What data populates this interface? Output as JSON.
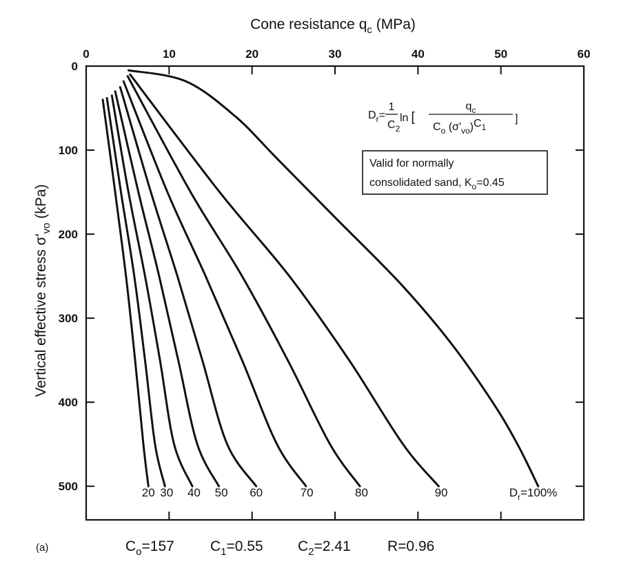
{
  "chart_data": {
    "type": "line",
    "x_axis": {
      "label_main": "Cone resistance q",
      "label_sub": "c",
      "label_unit": " (MPa)",
      "position": "top",
      "range": [
        0,
        60
      ],
      "ticks": [
        "0",
        "10",
        "20",
        "30",
        "40",
        "50",
        "60"
      ]
    },
    "y_axis": {
      "label_main": "Vertical effective stress σ'",
      "label_sub": "vo",
      "label_unit": " (kPa)",
      "inverted": true,
      "range": [
        0,
        540
      ],
      "ticks": [
        "0",
        "100",
        "200",
        "300",
        "400",
        "500"
      ]
    },
    "series": [
      {
        "name": "20",
        "points": [
          [
            2.0,
            40
          ],
          [
            3.5,
            150
          ],
          [
            4.8,
            250
          ],
          [
            5.9,
            350
          ],
          [
            6.9,
            450
          ],
          [
            7.5,
            500
          ]
        ]
      },
      {
        "name": "30",
        "points": [
          [
            2.5,
            38
          ],
          [
            4.2,
            150
          ],
          [
            5.8,
            250
          ],
          [
            7.1,
            350
          ],
          [
            8.3,
            450
          ],
          [
            9.5,
            500
          ]
        ]
      },
      {
        "name": "40",
        "points": [
          [
            3.1,
            35
          ],
          [
            5.1,
            150
          ],
          [
            7.1,
            250
          ],
          [
            8.9,
            350
          ],
          [
            10.6,
            450
          ],
          [
            12.8,
            500
          ]
        ]
      },
      {
        "name": "50",
        "points": [
          [
            3.5,
            30
          ],
          [
            6.3,
            150
          ],
          [
            8.8,
            250
          ],
          [
            11.1,
            350
          ],
          [
            13.4,
            450
          ],
          [
            16.0,
            500
          ]
        ]
      },
      {
        "name": "60",
        "points": [
          [
            4.1,
            25
          ],
          [
            7.8,
            150
          ],
          [
            11.0,
            250
          ],
          [
            14.0,
            350
          ],
          [
            17.0,
            450
          ],
          [
            20.5,
            500
          ]
        ]
      },
      {
        "name": "70",
        "points": [
          [
            4.5,
            18
          ],
          [
            9.8,
            150
          ],
          [
            14.4,
            250
          ],
          [
            18.8,
            350
          ],
          [
            23.0,
            450
          ],
          [
            26.5,
            500
          ]
        ]
      },
      {
        "name": "80",
        "points": [
          [
            5.0,
            12
          ],
          [
            12.6,
            150
          ],
          [
            18.8,
            250
          ],
          [
            24.3,
            350
          ],
          [
            29.4,
            450
          ],
          [
            33.0,
            500
          ]
        ]
      },
      {
        "name": "90",
        "points": [
          [
            5.3,
            10
          ],
          [
            16.1,
            150
          ],
          [
            24.5,
            250
          ],
          [
            31.7,
            350
          ],
          [
            38.2,
            450
          ],
          [
            42.5,
            500
          ]
        ]
      },
      {
        "name": "100%",
        "points": [
          [
            5.1,
            5
          ],
          [
            12.0,
            18
          ],
          [
            18.0,
            60
          ],
          [
            23.0,
            110
          ],
          [
            30.0,
            180
          ],
          [
            38.0,
            260
          ],
          [
            44.0,
            330
          ],
          [
            49.0,
            400
          ],
          [
            52.0,
            450
          ],
          [
            54.5,
            500
          ]
        ]
      }
    ],
    "curve_labels": [
      {
        "text": "20",
        "x": 7.5
      },
      {
        "text": "30",
        "x": 9.7
      },
      {
        "text": "40",
        "x": 13.0
      },
      {
        "text": "50",
        "x": 16.3
      },
      {
        "text": "60",
        "x": 20.5
      },
      {
        "text": "70",
        "x": 26.6
      },
      {
        "text": "80",
        "x": 33.2
      },
      {
        "text": "90",
        "x": 42.8
      },
      {
        "text": "D",
        "sub": "r",
        "rest": "=100%",
        "x": 51.0
      }
    ],
    "equation": {
      "lhs": "D",
      "lhs_sub": "r",
      "eq": "=",
      "frac_num": "1",
      "frac_den": "C",
      "frac_den_sub": "2",
      "ln": "ln",
      "open": "[",
      "num": "q",
      "num_sub": "c",
      "den": "C",
      "den_sub": "o",
      "den_mid": " (σ'",
      "den_mid_sub": "vo",
      "den_close": ")",
      "den_exp": "C",
      "den_exp_sub": "1",
      "close": "]"
    },
    "note": {
      "line1": "Valid for normally",
      "line2": "consolidated sand, K",
      "line2_sub": "o",
      "line2_rest": "=0.45"
    },
    "panel_label": "(a)",
    "params": [
      {
        "base": "C",
        "sub": "o",
        "rest": "=157"
      },
      {
        "base": "C",
        "sub": "1",
        "rest": "=0.55"
      },
      {
        "base": "C",
        "sub": "2",
        "rest": "=2.41"
      },
      {
        "base": "R",
        "sub": "",
        "rest": "=0.96"
      }
    ],
    "grid": false,
    "legend": "none"
  }
}
